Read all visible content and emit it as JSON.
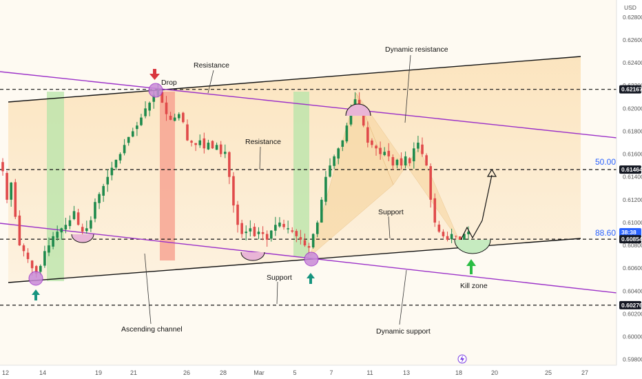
{
  "chart_data": {
    "type": "candlestick",
    "currency": "USD",
    "y_ticks": [
      "0.62800",
      "0.62600",
      "0.62400",
      "0.62200",
      "0.62000",
      "0.61800",
      "0.61600",
      "0.61400",
      "0.61200",
      "0.61000",
      "0.60800",
      "0.60600",
      "0.60400",
      "0.60200",
      "0.60000",
      "0.59800"
    ],
    "ylim": [
      0.5975,
      0.6295
    ],
    "x_ticks": [
      "12",
      "14",
      "19",
      "21",
      "26",
      "28",
      "Mar",
      "5",
      "7",
      "11",
      "13",
      "18",
      "20",
      "25",
      "27"
    ],
    "price_labels": [
      {
        "text": "0.62167",
        "value": 0.62167,
        "style": "dark"
      },
      {
        "text": "0.61464",
        "value": 0.61464,
        "style": "dark"
      },
      {
        "text": "38:38",
        "value": 0.60915,
        "style": "blue"
      },
      {
        "text": "0.60854",
        "value": 0.60854,
        "style": "dark"
      },
      {
        "text": "0.60276",
        "value": 0.60276,
        "style": "dark"
      }
    ],
    "horizontal_levels": [
      0.62167,
      0.61464,
      0.60854,
      0.60276
    ],
    "fib_levels": [
      {
        "label": "50.00%",
        "value": 0.61464
      },
      {
        "label": "88.60%",
        "value": 0.60854
      }
    ],
    "annotations": [
      "Drop",
      "Resistance",
      "Resistance",
      "Dynamic resistance",
      "Support",
      "Support",
      "Ascending channel",
      "Dynamic support",
      "Kill zone"
    ],
    "candles_seed": [
      0.6145,
      0.612,
      0.6135,
      0.6105,
      0.608,
      0.6075,
      0.6068,
      0.606,
      0.6055,
      0.6062,
      0.6075,
      0.608,
      0.6088,
      0.6092,
      0.6095,
      0.6098,
      0.6102,
      0.611,
      0.6098,
      0.6092,
      0.6095,
      0.6102,
      0.6118,
      0.6125,
      0.6132,
      0.614,
      0.6148,
      0.6155,
      0.616,
      0.6168,
      0.6175,
      0.618,
      0.6185,
      0.6192,
      0.62,
      0.6205,
      0.6212,
      0.6216,
      0.6205,
      0.6195,
      0.619,
      0.6192,
      0.6195,
      0.6188,
      0.6172,
      0.617,
      0.6168,
      0.6172,
      0.6165,
      0.617,
      0.6165,
      0.6168,
      0.616,
      0.6162,
      0.614,
      0.6115,
      0.6098,
      0.609,
      0.6092,
      0.6095,
      0.6088,
      0.6092,
      0.609,
      0.6085,
      0.6093,
      0.6098,
      0.61,
      0.6096,
      0.6095,
      0.6092,
      0.6088,
      0.6085,
      0.608,
      0.6078,
      0.609,
      0.61,
      0.612,
      0.614,
      0.615,
      0.6158,
      0.6165,
      0.6172,
      0.6185,
      0.62,
      0.6208,
      0.62,
      0.6185,
      0.617,
      0.6168,
      0.6165,
      0.616,
      0.6162,
      0.6158,
      0.615,
      0.6155,
      0.615,
      0.6158,
      0.6152,
      0.6165,
      0.617,
      0.616,
      0.615,
      0.612,
      0.61,
      0.6092,
      0.6088,
      0.6085,
      0.609,
      0.6088,
      0.6085,
      0.609,
      0.6092
    ]
  }
}
